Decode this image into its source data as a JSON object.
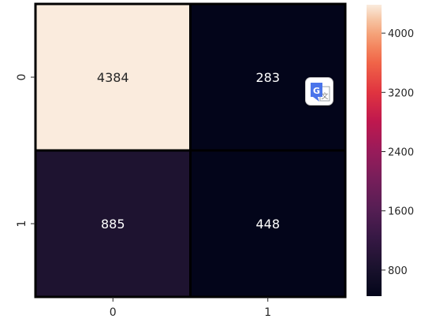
{
  "chart_data": {
    "type": "heatmap",
    "x_categories": [
      "0",
      "1"
    ],
    "y_categories": [
      "0",
      "1"
    ],
    "values": [
      [
        4384,
        283
      ],
      [
        885,
        448
      ]
    ],
    "cell_labels": [
      [
        "4384",
        "283"
      ],
      [
        "885",
        "448"
      ]
    ],
    "colormap": "rocket",
    "colorbar": {
      "range": [
        448,
        4384
      ],
      "ticks": [
        800,
        1600,
        2400,
        3200,
        4000
      ],
      "tick_labels": [
        "800",
        "1600",
        "2400",
        "3200",
        "4000"
      ]
    },
    "title": "",
    "xlabel": "",
    "ylabel": "",
    "grid": false
  },
  "overlay": {
    "translate_button": {
      "icon": "google-translate-icon",
      "glyph": "G",
      "colors": {
        "primary": "#4a74ea",
        "accent": "#3f66d9"
      }
    }
  }
}
